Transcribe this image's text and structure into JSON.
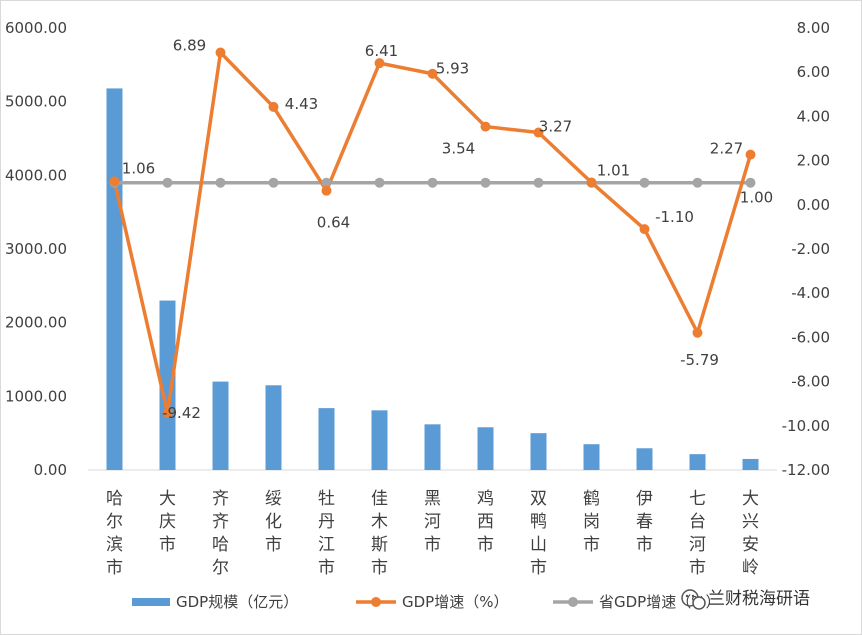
{
  "chart_data": {
    "type": "bar+line",
    "categories": [
      [
        "哈",
        "尔",
        "滨",
        "市"
      ],
      [
        "大",
        "庆",
        "市"
      ],
      [
        "齐",
        "齐",
        "哈",
        "尔"
      ],
      [
        "绥",
        "化",
        "市"
      ],
      [
        "牡",
        "丹",
        "江",
        "市"
      ],
      [
        "佳",
        "木",
        "斯",
        "市"
      ],
      [
        "黑",
        "河",
        "市"
      ],
      [
        "鸡",
        "西",
        "市"
      ],
      [
        "双",
        "鸭",
        "山",
        "市"
      ],
      [
        "鹤",
        "岗",
        "市"
      ],
      [
        "伊",
        "春",
        "市"
      ],
      [
        "七",
        "台",
        "河",
        "市"
      ],
      [
        "大",
        "兴",
        "安",
        "岭"
      ]
    ],
    "series": [
      {
        "name": "GDP规模（亿元）",
        "kind": "bar",
        "axis": "left",
        "color": "#5b9bd5",
        "values": [
          5180,
          2300,
          1200,
          1150,
          840,
          810,
          620,
          580,
          500,
          350,
          295,
          215,
          150
        ]
      },
      {
        "name": "GDP增速（%）",
        "kind": "line",
        "axis": "right",
        "color": "#ed7d31",
        "values": [
          1.06,
          -9.42,
          6.89,
          4.43,
          0.64,
          6.41,
          5.93,
          3.54,
          3.27,
          1.01,
          -1.1,
          -5.79,
          2.27
        ],
        "labels": [
          "1.06",
          "-9.42",
          "6.89",
          "4.43",
          "0.64",
          "6.41",
          "5.93",
          "3.54",
          "3.27",
          "1.01",
          "-1.10",
          "-5.79",
          "2.27"
        ]
      },
      {
        "name": "省GDP增速（%）",
        "kind": "line",
        "axis": "right",
        "color": "#a5a5a5",
        "values": [
          1.0,
          1.0,
          1.0,
          1.0,
          1.0,
          1.0,
          1.0,
          1.0,
          1.0,
          1.0,
          1.0,
          1.0,
          1.0
        ],
        "labels": [
          "",
          "",
          "",
          "",
          "",
          "",
          "",
          "",
          "",
          "",
          "",
          "",
          "1.00"
        ]
      }
    ],
    "y_left": {
      "ylim": [
        0,
        6000
      ],
      "ticks": [
        "0.00",
        "1000.00",
        "2000.00",
        "3000.00",
        "4000.00",
        "5000.00",
        "6000.00"
      ]
    },
    "y_right": {
      "ylim": [
        -12,
        8
      ],
      "ticks": [
        "8.00",
        "6.00",
        "4.00",
        "2.00",
        "0.00",
        "-2.00",
        "-4.00",
        "-6.00",
        "-8.00",
        "-10.00",
        "-12.00"
      ]
    },
    "legend": {
      "position": "bottom"
    },
    "grid": false
  },
  "watermark": "兰财税海研语"
}
